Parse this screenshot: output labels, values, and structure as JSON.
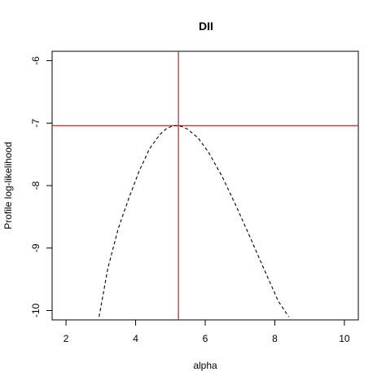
{
  "chart_data": {
    "type": "line",
    "title": "DII",
    "xlabel": "alpha",
    "ylabel": "Profile log-likelihood",
    "xlim": [
      1.6,
      10.4
    ],
    "ylim": [
      -10.15,
      -5.85
    ],
    "x_ticks": [
      2,
      4,
      6,
      8,
      10
    ],
    "y_ticks": [
      -10,
      -9,
      -8,
      -7,
      -6
    ],
    "x_tick_labels": [
      "2",
      "4",
      "6",
      "8",
      "10"
    ],
    "y_tick_labels": [
      "-10",
      "-9",
      "-8",
      "-7",
      "-6"
    ],
    "grid": false,
    "series": [
      {
        "line_style": "dashed",
        "color": "#000000",
        "x": [
          2.95,
          3.2,
          3.5,
          3.8,
          4.1,
          4.4,
          4.7,
          4.9,
          5.1,
          5.3,
          5.5,
          5.8,
          6.1,
          6.5,
          6.9,
          7.3,
          7.7,
          8.1,
          8.4
        ],
        "y": [
          -10.1,
          -9.33,
          -8.69,
          -8.21,
          -7.77,
          -7.41,
          -7.18,
          -7.08,
          -7.04,
          -7.05,
          -7.1,
          -7.24,
          -7.47,
          -7.87,
          -8.34,
          -8.84,
          -9.35,
          -9.85,
          -10.1
        ]
      }
    ],
    "reference_lines": [
      {
        "orientation": "vertical",
        "value": 5.23,
        "color": "#a52a2a"
      },
      {
        "orientation": "horizontal",
        "value": -7.04,
        "color": "#a52a2a"
      }
    ]
  }
}
